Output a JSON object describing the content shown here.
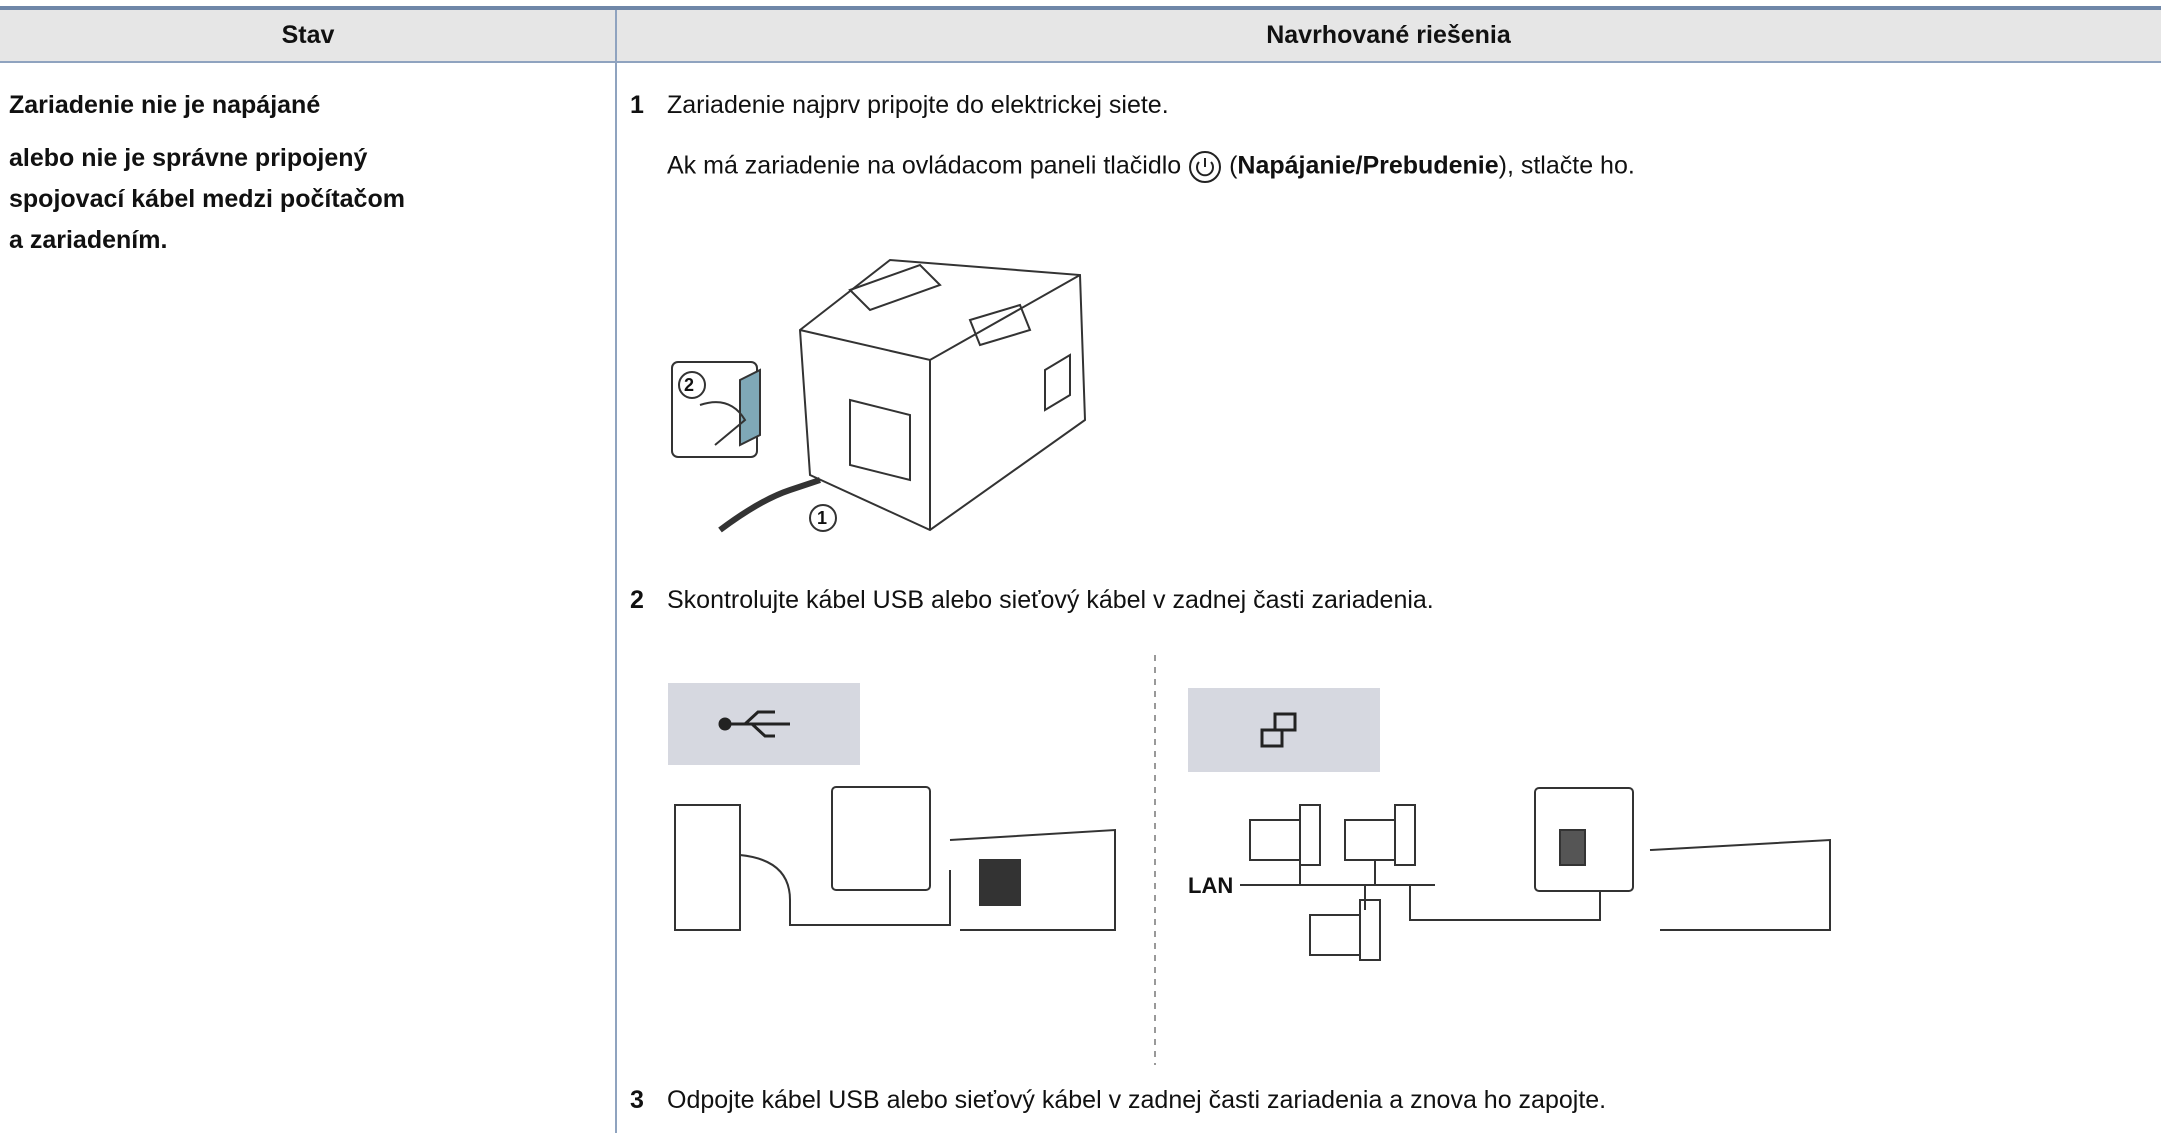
{
  "table": {
    "header": [
      "Stav",
      "Navrhované riešenia"
    ],
    "state": [
      "Zariadenie nie je napájané",
      "alebo nie je správne pripojený",
      "spojovací kábel medzi počítačom",
      "a zariadením."
    ],
    "steps": [
      {
        "number": "1",
        "text": "Zariadenie najprv pripojte do elektrickej siete.",
        "note": [
          "Ak má zariadenie na ovládacom paneli tlačidlo",
          "(",
          "Napájanie/Prebudenie",
          "), stlačte ho."
        ],
        "figure_labels": [
          "2",
          "1"
        ]
      },
      {
        "number": "2",
        "text": "Skontrolujte kábel USB alebo sieťový kábel v zadnej časti zariadenia.",
        "figure_labels": [
          "LAN"
        ]
      },
      {
        "number": "3",
        "text": "Odpojte kábel USB alebo sieťový kábel v zadnej časti zariadenia a znova ho zapojte."
      }
    ]
  }
}
